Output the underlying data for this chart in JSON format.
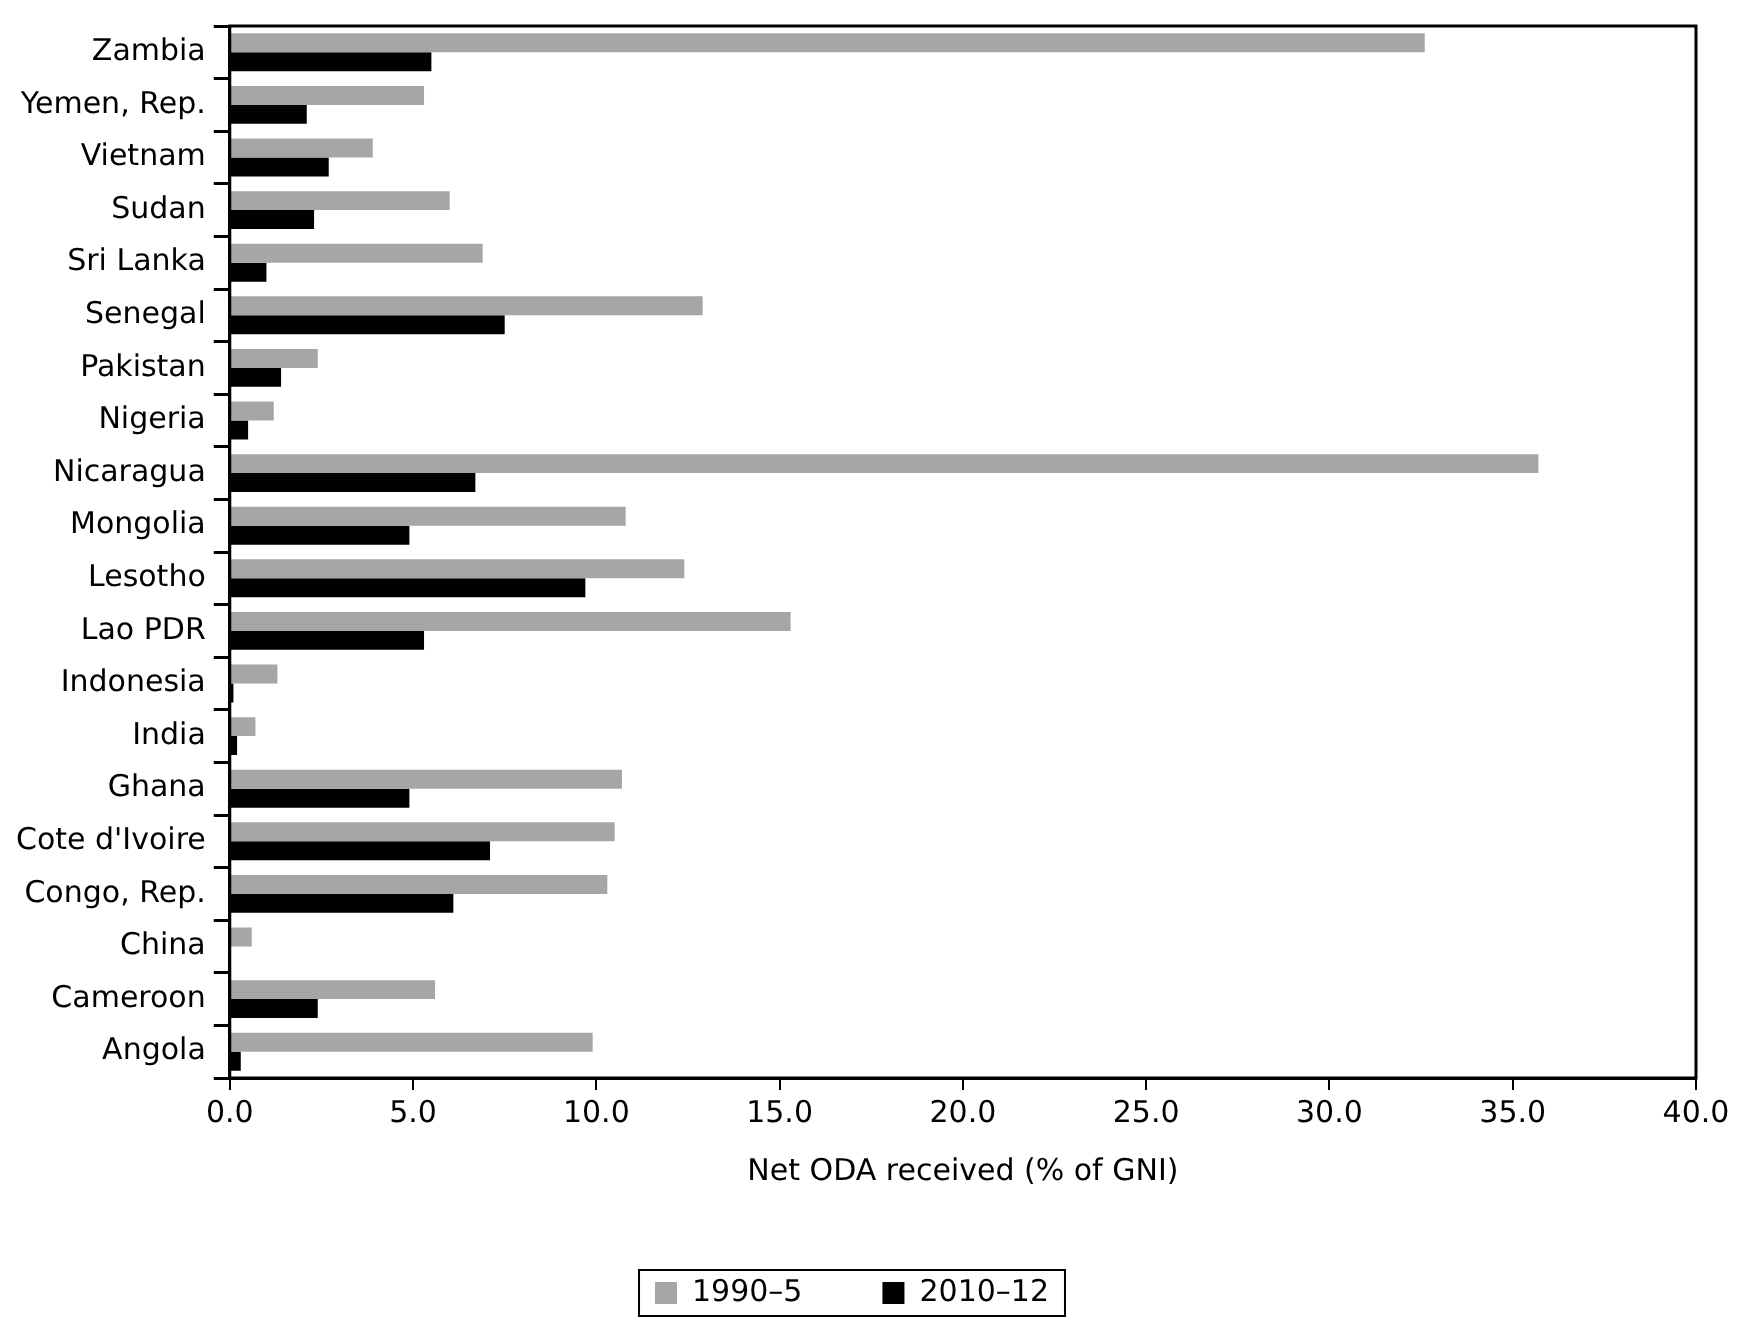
{
  "chart_data": {
    "type": "bar",
    "orientation": "horizontal",
    "xlabel": "Net ODA received (% of GNI)",
    "categories": [
      "Zambia",
      "Yemen, Rep.",
      "Vietnam",
      "Sudan",
      "Sri Lanka",
      "Senegal",
      "Pakistan",
      "Nigeria",
      "Nicaragua",
      "Mongolia",
      "Lesotho",
      "Lao PDR",
      "Indonesia",
      "India",
      "Ghana",
      "Cote d'Ivoire",
      "Congo, Rep.",
      "China",
      "Cameroon",
      "Angola"
    ],
    "series": [
      {
        "name": "1990–5",
        "color": "#a6a6a6",
        "values": [
          32.6,
          5.3,
          3.9,
          6.0,
          6.9,
          12.9,
          2.4,
          1.2,
          35.7,
          10.8,
          12.4,
          15.3,
          1.3,
          0.7,
          10.7,
          10.5,
          10.3,
          0.6,
          5.6,
          9.9
        ]
      },
      {
        "name": "2010–12",
        "color": "#000000",
        "values": [
          5.5,
          2.1,
          2.7,
          2.3,
          1.0,
          7.5,
          1.4,
          0.5,
          6.7,
          4.9,
          9.7,
          5.3,
          0.1,
          0.2,
          4.9,
          7.1,
          6.1,
          null,
          2.4,
          0.3
        ]
      }
    ],
    "xlim": [
      0,
      40
    ],
    "xticks": [
      {
        "value": 0,
        "label": "0.0"
      },
      {
        "value": 5,
        "label": "5.0"
      },
      {
        "value": 10,
        "label": "10.0"
      },
      {
        "value": 15,
        "label": "15.0"
      },
      {
        "value": 20,
        "label": "20.0"
      },
      {
        "value": 25,
        "label": "25.0"
      },
      {
        "value": 30,
        "label": "30.0"
      },
      {
        "value": 35,
        "label": "35.0"
      },
      {
        "value": 40,
        "label": "40.0"
      }
    ],
    "grid": false,
    "legend": "bottom"
  }
}
